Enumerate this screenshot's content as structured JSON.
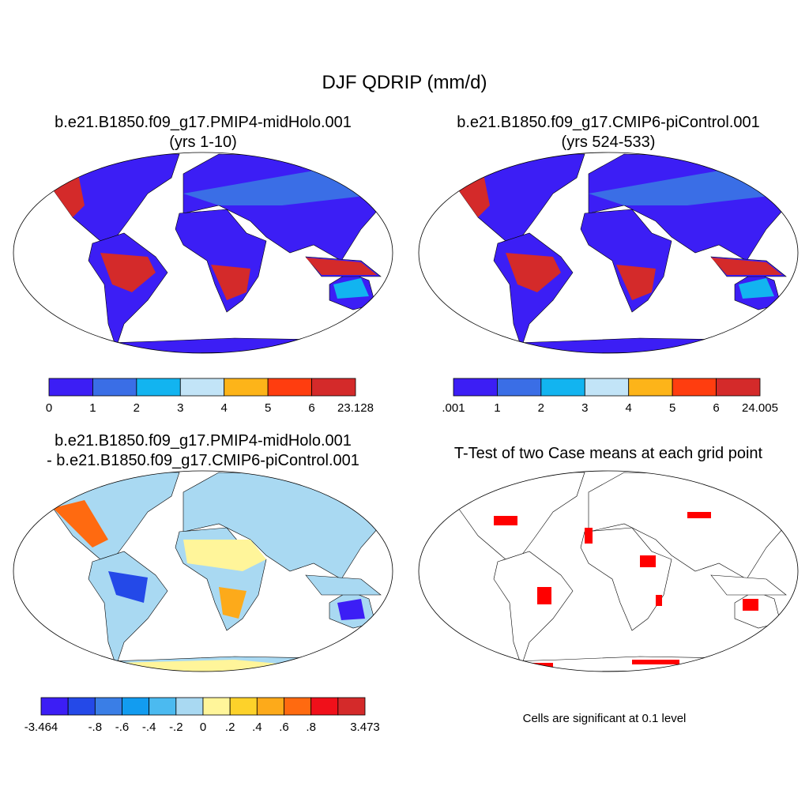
{
  "title": "DJF QDRIP (mm/d)",
  "panels": [
    {
      "title": "b.e21.B1850.f09_g17.PMIP4-midHolo.001",
      "subtitle": "(yrs 1-10)",
      "colorbar": {
        "colors": [
          "#3c1ef5",
          "#3a6ee6",
          "#12b4f0",
          "#c2e4f7",
          "#fdb419",
          "#ff3d0f",
          "#d42a2a"
        ],
        "labels": [
          "0",
          "1",
          "2",
          "3",
          "4",
          "5",
          "6",
          "23.128"
        ]
      }
    },
    {
      "title": "b.e21.B1850.f09_g17.CMIP6-piControl.001",
      "subtitle": "(yrs 524-533)",
      "colorbar": {
        "colors": [
          "#3c1ef5",
          "#3a6ee6",
          "#12b4f0",
          "#c2e4f7",
          "#fdb419",
          "#ff3d0f",
          "#d42a2a"
        ],
        "labels": [
          ".001",
          "1",
          "2",
          "3",
          "4",
          "5",
          "6",
          "24.005"
        ]
      }
    },
    {
      "title": "b.e21.B1850.f09_g17.PMIP4-midHolo.001",
      "subtitle": "- b.e21.B1850.f09_g17.CMIP6-piControl.001",
      "colorbar": {
        "colors": [
          "#3c1ef5",
          "#2449e8",
          "#3a7ee6",
          "#129cf0",
          "#4bbaf0",
          "#a9d9f2",
          "#fff59a",
          "#fdd22a",
          "#fdaa1a",
          "#ff6a10",
          "#f0101a",
          "#d42a2a"
        ],
        "labels": [
          "-3.464",
          null,
          "-.8",
          "-.6",
          "-.4",
          "-.2",
          "0",
          ".2",
          ".4",
          ".6",
          ".8",
          null,
          "3.473"
        ]
      }
    }
  ],
  "ttest": {
    "title": "T-Test of two Case means at each grid point",
    "note": "Cells are significant at 0.1 level"
  }
}
